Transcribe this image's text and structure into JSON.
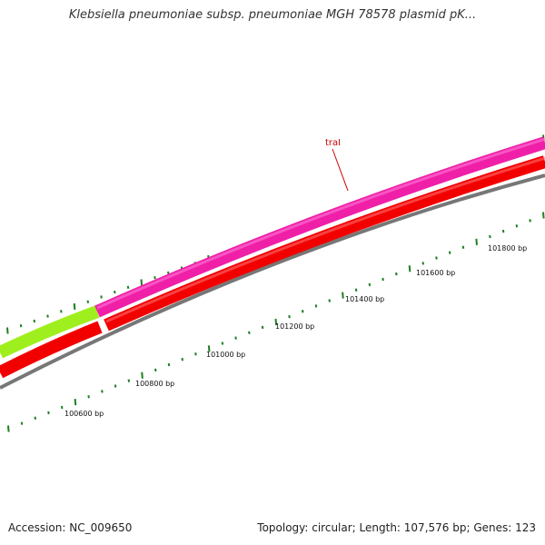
{
  "title": "Klebsiella pneumoniae subsp. pneumoniae MGH 78578 plasmid pK...",
  "footer": {
    "accession": "Accession: NC_009650",
    "summary": "Topology: circular; Length: 107,576 bp; Genes: 123"
  },
  "gene_label": "traI",
  "colors": {
    "forward_gene": "#f01fa8",
    "forward_gene_highlight": "#ff5fcf",
    "adjacent_gene": "#9fef1f",
    "reverse_gene": "#f20000",
    "reverse_gene_highlight": "#ff5050",
    "backbone": "#777777",
    "tick": "#1f7f1f",
    "label_line": "#cc0000",
    "label_text": "#cc0000"
  },
  "scale": {
    "labels": [
      "100600 bp",
      "100800 bp",
      "101000 bp",
      "101200 bp",
      "101400 bp",
      "101600 bp",
      "101800 bp"
    ]
  }
}
